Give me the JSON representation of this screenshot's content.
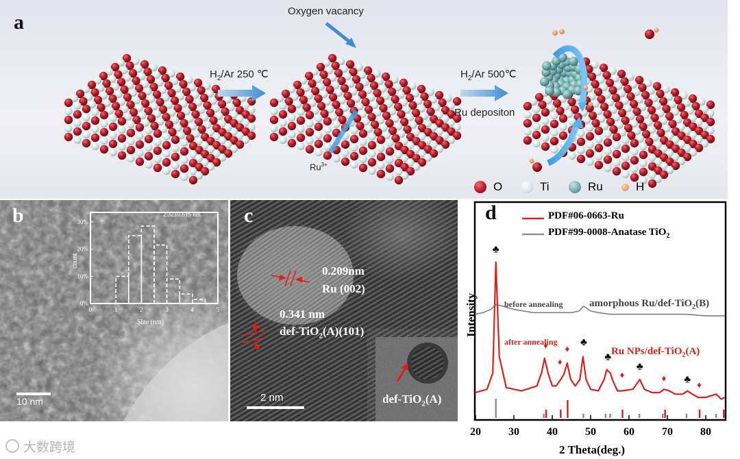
{
  "panel_a": {
    "label": "a",
    "step1": {
      "prefix": "H",
      "sub": "2",
      "suffix": "/Ar 250 ℃"
    },
    "step2": {
      "prefix": "H",
      "sub": "2",
      "suffix": "/Ar 500℃"
    },
    "oxygen_vacancy": "Oxygen vacancy",
    "ru3": {
      "base": "Ru",
      "sup": "3+"
    },
    "ru_deposition": "Ru depositon",
    "legend": [
      {
        "key": "O",
        "color": "#b81d2a"
      },
      {
        "key": "Ti",
        "color": "#d3e9e6"
      },
      {
        "key": "Ru",
        "color": "#6fa7a9"
      },
      {
        "key": "H",
        "color": "#f0a06a"
      }
    ]
  },
  "panel_b": {
    "label": "b",
    "scale": "10 nm",
    "inset": {
      "annotation": "2.32±0.615 nm",
      "ylabel": "count",
      "xlabel": "Size (nm)",
      "yticks": [
        "0%",
        "10%",
        "20%",
        "30%"
      ],
      "xticks": [
        "0",
        "1",
        "2",
        "3",
        "4",
        "5"
      ]
    }
  },
  "panel_c": {
    "label": "c",
    "spacing1": "0.209nm",
    "plane1": "Ru (002)",
    "spacing2": "0.341 nm",
    "plane2": {
      "p1": "def-TiO",
      "sub": "2",
      "p2": "(A)(101)"
    },
    "scale": "2 nm",
    "inset_label": {
      "p1": "def-TiO",
      "sub": "2",
      "p2": "(A)"
    }
  },
  "panel_d": {
    "label": "d",
    "legend": [
      {
        "name": "PDF#06-0663-Ru",
        "color": "#e0201b"
      },
      {
        "name": "PDF#99-0008-Anatase TiO",
        "sub": "2",
        "color": "#8c8c8c"
      }
    ],
    "ylabel": "Intensity",
    "xlabel": "2 Theta(deg.)",
    "xticks": [
      "20",
      "30",
      "40",
      "50",
      "60",
      "70",
      "80"
    ],
    "before_label": "before annealing",
    "before_name": {
      "p1": "amorphous Ru/def-TiO",
      "sub": "2",
      "p2": "(B)"
    },
    "after_label": "after annealing",
    "after_name": {
      "p1": "Ru NPs/def-TiO",
      "sub": "2",
      "p2": "(A)"
    }
  },
  "watermark": "大数跨境",
  "chart_data": [
    {
      "type": "bar",
      "title": "",
      "annotation": "2.32±0.615 nm",
      "xlabel": "Size (nm)",
      "ylabel": "count",
      "categories": [
        "1.0-1.5",
        "1.5-2.0",
        "2.0-2.5",
        "2.5-3.0",
        "3.0-3.5",
        "3.5-4.0",
        "4.0-4.5"
      ],
      "values": [
        10,
        25,
        28.5,
        21.5,
        9,
        3.5,
        1.5
      ],
      "xlim": [
        0,
        5
      ],
      "ylim": [
        0,
        30
      ],
      "y_unit": "%"
    },
    {
      "type": "line",
      "xlabel": "2 Theta(deg.)",
      "ylabel": "Intensity",
      "xlim": [
        20,
        85
      ],
      "series": [
        {
          "name": "amorphous Ru/def-TiO2(B)",
          "color": "#7f7f7f",
          "x": [
            20,
            22,
            24,
            25.3,
            27,
            30,
            35,
            40,
            45,
            47,
            48.2,
            50,
            52,
            55,
            60,
            65,
            70,
            75,
            80,
            85
          ],
          "y": [
            0.56,
            0.57,
            0.59,
            0.62,
            0.61,
            0.59,
            0.57,
            0.57,
            0.57,
            0.58,
            0.61,
            0.58,
            0.57,
            0.56,
            0.56,
            0.56,
            0.56,
            0.56,
            0.55,
            0.55
          ]
        },
        {
          "name": "Ru NPs/def-TiO2(A)",
          "color": "#e0201b",
          "x": [
            20,
            23,
            24.5,
            25.3,
            26.2,
            28,
            32,
            36,
            37.2,
            38,
            38.9,
            40,
            41,
            42.2,
            43,
            43.9,
            44.8,
            46,
            47.2,
            48,
            48.8,
            50,
            52,
            53.5,
            54.2,
            55.1,
            56,
            57,
            58,
            61,
            62.8,
            64,
            66,
            68,
            69.1,
            70.5,
            72,
            74,
            75.2,
            76.5,
            78,
            80,
            82.7,
            84,
            85
          ],
          "y": [
            0.08,
            0.1,
            0.2,
            0.88,
            0.3,
            0.11,
            0.09,
            0.12,
            0.2,
            0.29,
            0.2,
            0.12,
            0.12,
            0.16,
            0.19,
            0.26,
            0.16,
            0.12,
            0.16,
            0.3,
            0.16,
            0.1,
            0.09,
            0.16,
            0.22,
            0.2,
            0.14,
            0.09,
            0.09,
            0.1,
            0.16,
            0.1,
            0.08,
            0.08,
            0.1,
            0.09,
            0.07,
            0.07,
            0.09,
            0.07,
            0.05,
            0.05,
            0.07,
            0.04,
            0.05
          ]
        }
      ],
      "ref_ru": [
        38.4,
        42.2,
        44.0,
        58.3,
        69.4,
        78.4,
        84.7
      ],
      "ref_anatase": [
        25.3,
        37.8,
        48.1,
        53.9,
        55.1,
        62.7,
        68.8,
        75.0,
        82.7
      ],
      "markers_anatase": [
        [
          25.3,
          0.94
        ],
        [
          48.2,
          0.37
        ],
        [
          54.5,
          0.28
        ],
        [
          62.8,
          0.22
        ],
        [
          75.2,
          0.14
        ]
      ],
      "markers_ru": [
        [
          38.3,
          0.35
        ],
        [
          42.0,
          0.25
        ],
        [
          43.9,
          0.33
        ],
        [
          58.2,
          0.17
        ],
        [
          69.1,
          0.15
        ],
        [
          78.3,
          0.11
        ]
      ]
    }
  ]
}
